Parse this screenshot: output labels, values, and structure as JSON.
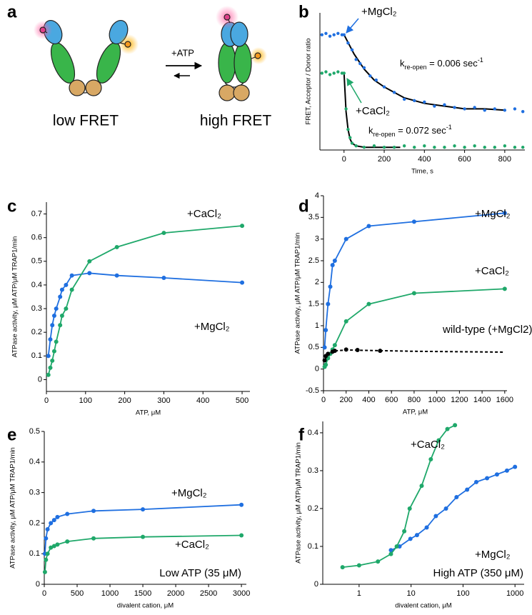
{
  "diagram": {
    "panel": "a",
    "arrow_label": "+ATP",
    "states": [
      "low FRET",
      "high FRET"
    ]
  },
  "chart_data": [
    {
      "panel": "b",
      "type": "scatter",
      "xlabel": "Time, s",
      "ylabel": "FRET, Acceptor / Donor ratio",
      "xlim": [
        -120,
        900
      ],
      "xticks": [
        0,
        200,
        400,
        600,
        800
      ],
      "ylim": [
        0,
        1
      ],
      "fit_color": "#000000",
      "series": [
        {
          "name": "+MgCl₂",
          "color": "#1f6fe0",
          "x": [
            -110,
            -90,
            -70,
            -50,
            -30,
            -10,
            0,
            20,
            40,
            60,
            80,
            100,
            130,
            160,
            200,
            250,
            300,
            350,
            400,
            450,
            500,
            550,
            600,
            650,
            700,
            750,
            800,
            850,
            890
          ],
          "values": [
            0.84,
            0.85,
            0.83,
            0.84,
            0.85,
            0.84,
            0.84,
            0.78,
            0.73,
            0.66,
            0.63,
            0.6,
            0.54,
            0.51,
            0.46,
            0.42,
            0.37,
            0.36,
            0.35,
            0.32,
            0.33,
            0.31,
            0.3,
            0.31,
            0.29,
            0.3,
            0.29,
            0.3,
            0.28
          ],
          "fit": {
            "x": [
              0,
              50,
              100,
              150,
              200,
              300,
              400,
              500,
              600,
              700,
              800
            ],
            "values": [
              0.84,
              0.7,
              0.59,
              0.51,
              0.46,
              0.38,
              0.34,
              0.32,
              0.3,
              0.3,
              0.29
            ]
          },
          "rate": {
            "symbol": "k",
            "subscript": "re-open",
            "text": " = 0.006 sec",
            "superscript": "-1"
          }
        },
        {
          "name": "+CaCl₂",
          "color": "#1fa86a",
          "x": [
            -110,
            -90,
            -70,
            -50,
            -30,
            -10,
            0,
            10,
            20,
            30,
            40,
            60,
            100,
            150,
            200,
            250,
            300,
            350,
            400,
            450,
            500,
            550,
            600,
            650,
            700,
            750,
            800,
            850,
            890
          ],
          "values": [
            0.56,
            0.57,
            0.55,
            0.56,
            0.57,
            0.56,
            0.56,
            0.3,
            0.15,
            0.09,
            0.05,
            0.03,
            0.02,
            0.03,
            0.02,
            0.02,
            0.03,
            0.02,
            0.03,
            0.02,
            0.02,
            0.03,
            0.02,
            0.03,
            0.02,
            0.02,
            0.03,
            0.02,
            0.02
          ],
          "fit": {
            "x": [
              0,
              10,
              20,
              30,
              40,
              60,
              100,
              280
            ],
            "values": [
              0.56,
              0.28,
              0.15,
              0.08,
              0.05,
              0.03,
              0.02,
              0.02
            ]
          },
          "rate": {
            "symbol": "k",
            "subscript": "re-open",
            "text": " = 0.072 sec",
            "superscript": "-1"
          }
        }
      ]
    },
    {
      "panel": "c",
      "type": "line",
      "xlabel": "ATP, μM",
      "ylabel": "ATPase activity, μM ATP/μM TRAP1/min",
      "xlim": [
        0,
        520
      ],
      "xticks": [
        0,
        100,
        200,
        300,
        400,
        500
      ],
      "ylim": [
        -0.05,
        0.75
      ],
      "yticks": [
        0,
        0.1,
        0.2,
        0.3,
        0.4,
        0.5,
        0.6,
        0.7
      ],
      "series": [
        {
          "name": "+MgCl₂",
          "color": "#1f6fe0",
          "x": [
            5,
            10,
            15,
            20,
            25,
            35,
            40,
            50,
            65,
            110,
            180,
            300,
            500
          ],
          "values": [
            0.1,
            0.17,
            0.23,
            0.27,
            0.3,
            0.35,
            0.38,
            0.4,
            0.44,
            0.45,
            0.44,
            0.43,
            0.41
          ]
        },
        {
          "name": "+CaCl₂",
          "color": "#1fa86a",
          "x": [
            5,
            10,
            15,
            20,
            25,
            35,
            40,
            50,
            65,
            110,
            180,
            300,
            500
          ],
          "values": [
            0.02,
            0.05,
            0.08,
            0.12,
            0.16,
            0.23,
            0.27,
            0.3,
            0.38,
            0.5,
            0.56,
            0.62,
            0.65
          ]
        }
      ]
    },
    {
      "panel": "d",
      "type": "line",
      "xlabel": "ATP, μM",
      "ylabel": "ATPase activity, μM ATP/μM TRAP1/min",
      "xlim": [
        0,
        1620
      ],
      "xticks": [
        0,
        200,
        400,
        600,
        800,
        1000,
        1200,
        1400,
        1600
      ],
      "ylim": [
        -0.5,
        4
      ],
      "yticks": [
        -0.5,
        0,
        0.5,
        1,
        1.5,
        2,
        2.5,
        3,
        3.5,
        4
      ],
      "series": [
        {
          "name": "+MgCl₂",
          "color": "#1f6fe0",
          "x": [
            10,
            20,
            40,
            60,
            80,
            100,
            200,
            400,
            800,
            1600
          ],
          "values": [
            0.5,
            0.9,
            1.5,
            1.9,
            2.4,
            2.5,
            3.0,
            3.3,
            3.4,
            3.6
          ]
        },
        {
          "name": "+CaCl₂",
          "color": "#1fa86a",
          "x": [
            10,
            20,
            40,
            60,
            80,
            100,
            200,
            400,
            800,
            1600
          ],
          "values": [
            0.05,
            0.1,
            0.25,
            0.35,
            0.45,
            0.55,
            1.1,
            1.5,
            1.75,
            1.85
          ]
        },
        {
          "name": "wild-type (+MgCl2)",
          "color": "#000000",
          "dash": true,
          "x": [
            10,
            20,
            40,
            80,
            100,
            200,
            300,
            500
          ],
          "values": [
            0.2,
            0.3,
            0.35,
            0.4,
            0.42,
            0.45,
            0.44,
            0.42
          ],
          "fit": {
            "x": [
              10,
              40,
              100,
              200,
              400,
              800,
              1200,
              1600
            ],
            "values": [
              0.2,
              0.35,
              0.42,
              0.44,
              0.43,
              0.41,
              0.4,
              0.39
            ]
          }
        }
      ]
    },
    {
      "panel": "e",
      "type": "line",
      "xlabel": "divalent cation, μM",
      "ylabel": "ATPase activity, μM ATP/μM TRAP1/min",
      "note": "Low ATP (35 μM)",
      "xlim": [
        0,
        3075
      ],
      "xticks": [
        0,
        500,
        1000,
        1500,
        2000,
        2500,
        3000
      ],
      "ylim": [
        0,
        0.5
      ],
      "yticks": [
        0,
        0.1,
        0.2,
        0.3,
        0.4,
        0.5
      ],
      "series": [
        {
          "name": "+MgCl₂",
          "color": "#1f6fe0",
          "x": [
            10,
            25,
            50,
            100,
            150,
            200,
            350,
            750,
            1500,
            3000
          ],
          "values": [
            0.1,
            0.15,
            0.18,
            0.2,
            0.21,
            0.22,
            0.23,
            0.24,
            0.245,
            0.26
          ]
        },
        {
          "name": "+CaCl₂",
          "color": "#1fa86a",
          "x": [
            10,
            25,
            50,
            100,
            150,
            200,
            350,
            750,
            1500,
            3000
          ],
          "values": [
            0.04,
            0.08,
            0.1,
            0.12,
            0.125,
            0.13,
            0.14,
            0.15,
            0.155,
            0.16
          ]
        }
      ]
    },
    {
      "panel": "f",
      "type": "line",
      "xscale": "log",
      "xlabel": "divalent cation, μM",
      "ylabel": "ATPase activity, μM ATP/μM TRAP1/min",
      "note": "High ATP (350 μM)",
      "xlim": [
        0.2,
        1500
      ],
      "xticks": [
        1,
        10,
        100,
        1000
      ],
      "ylim": [
        0,
        0.43
      ],
      "yticks": [
        0,
        0.1,
        0.2,
        0.3,
        0.4
      ],
      "series": [
        {
          "name": "+MgCl₂",
          "color": "#1f6fe0",
          "x": [
            4.1,
            6,
            9.7,
            13,
            20,
            30,
            47,
            75,
            120,
            180,
            290,
            450,
            700,
            1000
          ],
          "values": [
            0.09,
            0.1,
            0.12,
            0.13,
            0.15,
            0.18,
            0.2,
            0.23,
            0.25,
            0.27,
            0.28,
            0.29,
            0.3,
            0.31
          ]
        },
        {
          "name": "+CaCl₂",
          "color": "#1fa86a",
          "x": [
            0.48,
            1,
            2.3,
            4.1,
            5.3,
            7.4,
            9.4,
            16,
            24,
            34,
            50,
            70
          ],
          "values": [
            0.045,
            0.05,
            0.06,
            0.08,
            0.1,
            0.14,
            0.2,
            0.26,
            0.33,
            0.38,
            0.41,
            0.42
          ]
        }
      ]
    }
  ]
}
